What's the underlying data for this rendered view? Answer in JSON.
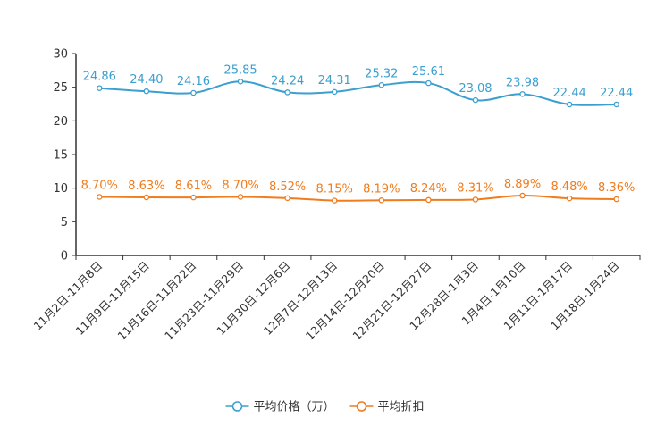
{
  "chart_data": {
    "type": "line",
    "title": "",
    "xlabel": "",
    "ylabel": "",
    "ylim": [
      0,
      30
    ],
    "yticks": [
      0,
      5,
      10,
      15,
      20,
      25,
      30
    ],
    "categories": [
      "11月2日-11月8日",
      "11月9日-11月15日",
      "11月16日-11月22日",
      "11月23日-11月29日",
      "11月30日-12月6日",
      "12月7日-12月13日",
      "12月14日-12月20日",
      "12月21日-12月27日",
      "12月28日-1月3日",
      "1月4日-1月10日",
      "1月11日-1月17日",
      "1月18日-1月24日"
    ],
    "series": [
      {
        "name": "平均价格（万）",
        "color": "#3b9fcf",
        "values": [
          24.86,
          24.4,
          24.16,
          25.85,
          24.24,
          24.31,
          25.32,
          25.61,
          23.08,
          23.98,
          22.44,
          22.44
        ],
        "labels": [
          "24.86",
          "24.40",
          "24.16",
          "25.85",
          "24.24",
          "24.31",
          "25.32",
          "25.61",
          "23.08",
          "23.98",
          "22.44",
          "22.44"
        ]
      },
      {
        "name": "平均折扣",
        "color": "#f07c1e",
        "values": [
          8.7,
          8.63,
          8.61,
          8.7,
          8.52,
          8.15,
          8.19,
          8.24,
          8.31,
          8.89,
          8.48,
          8.36
        ],
        "labels": [
          "8.70%",
          "8.63%",
          "8.61%",
          "8.70%",
          "8.52%",
          "8.15%",
          "8.19%",
          "8.24%",
          "8.31%",
          "8.89%",
          "8.48%",
          "8.36%"
        ]
      }
    ],
    "legend_position": "bottom"
  }
}
